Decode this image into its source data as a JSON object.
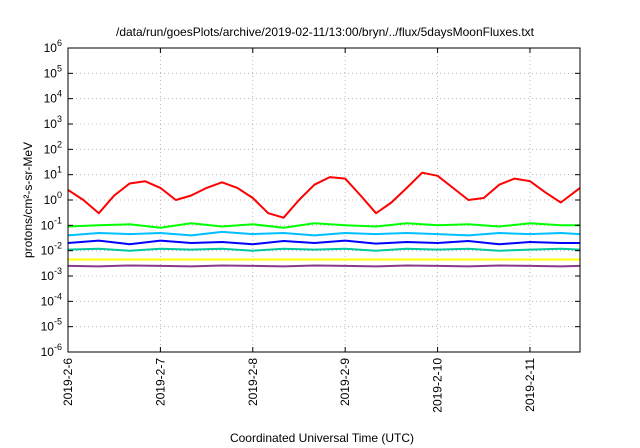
{
  "chart_data": {
    "type": "line",
    "title": "/data/run/goesPlots/archive/2019-02-11/13:00/bryn/../flux/5daysMoonFluxes.txt",
    "xlabel": "Coordinated Universal Time (UTC)",
    "ylabel": "protons/cm²-s-sr-MeV",
    "y_scale": "log",
    "ylim": [
      1e-06,
      1000000.0
    ],
    "xlim": [
      "2019-02-06T00:00",
      "2019-02-11T13:00"
    ],
    "grid": true,
    "legend": "none",
    "y_ticks": [
      {
        "value": 1e-06,
        "base": "10",
        "exp": "-6"
      },
      {
        "value": 1e-05,
        "base": "10",
        "exp": "-5"
      },
      {
        "value": 0.0001,
        "base": "10",
        "exp": "-4"
      },
      {
        "value": 0.001,
        "base": "10",
        "exp": "-3"
      },
      {
        "value": 0.01,
        "base": "10",
        "exp": "-2"
      },
      {
        "value": 0.1,
        "base": "10",
        "exp": "-1"
      },
      {
        "value": 1,
        "base": "10",
        "exp": "0"
      },
      {
        "value": 10.0,
        "base": "10",
        "exp": "1"
      },
      {
        "value": 100.0,
        "base": "10",
        "exp": "2"
      },
      {
        "value": 1000.0,
        "base": "10",
        "exp": "3"
      },
      {
        "value": 10000.0,
        "base": "10",
        "exp": "4"
      },
      {
        "value": 100000.0,
        "base": "10",
        "exp": "5"
      },
      {
        "value": 1000000.0,
        "base": "10",
        "exp": "6"
      }
    ],
    "x_ticks": [
      {
        "date": "2019-02-06T00:00",
        "label": "2019-2-6"
      },
      {
        "date": "2019-02-07T00:00",
        "label": "2019-2-7"
      },
      {
        "date": "2019-02-08T00:00",
        "label": "2019-2-8"
      },
      {
        "date": "2019-02-09T00:00",
        "label": "2019-2-9"
      },
      {
        "date": "2019-02-10T00:00",
        "label": "2019-2-10"
      },
      {
        "date": "2019-02-11T00:00",
        "label": "2019-2-11"
      }
    ],
    "series": [
      {
        "color": "#ff0000",
        "x": [
          "2019-02-06T00:00",
          "2019-02-06T04:00",
          "2019-02-06T08:00",
          "2019-02-06T12:00",
          "2019-02-06T16:00",
          "2019-02-06T20:00",
          "2019-02-07T00:00",
          "2019-02-07T04:00",
          "2019-02-07T08:00",
          "2019-02-07T12:00",
          "2019-02-07T16:00",
          "2019-02-07T20:00",
          "2019-02-08T00:00",
          "2019-02-08T04:00",
          "2019-02-08T08:00",
          "2019-02-08T12:00",
          "2019-02-08T16:00",
          "2019-02-08T20:00",
          "2019-02-09T00:00",
          "2019-02-09T04:00",
          "2019-02-09T08:00",
          "2019-02-09T12:00",
          "2019-02-09T16:00",
          "2019-02-09T20:00",
          "2019-02-10T00:00",
          "2019-02-10T04:00",
          "2019-02-10T08:00",
          "2019-02-10T12:00",
          "2019-02-10T16:00",
          "2019-02-10T20:00",
          "2019-02-11T00:00",
          "2019-02-11T04:00",
          "2019-02-11T08:00",
          "2019-02-11T13:00"
        ],
        "y": [
          2.5,
          1.0,
          0.3,
          1.5,
          4.5,
          5.5,
          3.0,
          1.0,
          1.5,
          3.0,
          5.0,
          3.0,
          1.2,
          0.3,
          0.2,
          1.0,
          4.0,
          8.0,
          7.0,
          1.5,
          0.3,
          0.8,
          3.0,
          12.0,
          9.0,
          3.0,
          1.0,
          1.2,
          4.0,
          7.0,
          5.5,
          2.0,
          0.8,
          3.0
        ]
      },
      {
        "color": "#00ff00",
        "x": [
          "2019-02-06T00:00",
          "2019-02-06T08:00",
          "2019-02-06T16:00",
          "2019-02-07T00:00",
          "2019-02-07T08:00",
          "2019-02-07T16:00",
          "2019-02-08T00:00",
          "2019-02-08T08:00",
          "2019-02-08T16:00",
          "2019-02-09T00:00",
          "2019-02-09T08:00",
          "2019-02-09T16:00",
          "2019-02-10T00:00",
          "2019-02-10T08:00",
          "2019-02-10T16:00",
          "2019-02-11T00:00",
          "2019-02-11T08:00",
          "2019-02-11T13:00"
        ],
        "y": [
          0.09,
          0.1,
          0.11,
          0.08,
          0.12,
          0.09,
          0.11,
          0.08,
          0.12,
          0.1,
          0.09,
          0.12,
          0.1,
          0.11,
          0.09,
          0.12,
          0.1,
          0.1
        ]
      },
      {
        "color": "#00bfff",
        "x": [
          "2019-02-06T00:00",
          "2019-02-06T08:00",
          "2019-02-06T16:00",
          "2019-02-07T00:00",
          "2019-02-07T08:00",
          "2019-02-07T16:00",
          "2019-02-08T00:00",
          "2019-02-08T08:00",
          "2019-02-08T16:00",
          "2019-02-09T00:00",
          "2019-02-09T08:00",
          "2019-02-09T16:00",
          "2019-02-10T00:00",
          "2019-02-10T08:00",
          "2019-02-10T16:00",
          "2019-02-11T00:00",
          "2019-02-11T08:00",
          "2019-02-11T13:00"
        ],
        "y": [
          0.04,
          0.05,
          0.045,
          0.05,
          0.04,
          0.055,
          0.045,
          0.05,
          0.04,
          0.05,
          0.045,
          0.05,
          0.045,
          0.04,
          0.05,
          0.045,
          0.05,
          0.045
        ]
      },
      {
        "color": "#0000ff",
        "x": [
          "2019-02-06T00:00",
          "2019-02-06T08:00",
          "2019-02-06T16:00",
          "2019-02-07T00:00",
          "2019-02-07T08:00",
          "2019-02-07T16:00",
          "2019-02-08T00:00",
          "2019-02-08T08:00",
          "2019-02-08T16:00",
          "2019-02-09T00:00",
          "2019-02-09T08:00",
          "2019-02-09T16:00",
          "2019-02-10T00:00",
          "2019-02-10T08:00",
          "2019-02-10T16:00",
          "2019-02-11T00:00",
          "2019-02-11T08:00",
          "2019-02-11T13:00"
        ],
        "y": [
          0.02,
          0.025,
          0.018,
          0.025,
          0.02,
          0.022,
          0.018,
          0.024,
          0.02,
          0.025,
          0.019,
          0.022,
          0.02,
          0.024,
          0.018,
          0.022,
          0.02,
          0.02
        ]
      },
      {
        "color": "#00c8a0",
        "x": [
          "2019-02-06T00:00",
          "2019-02-06T08:00",
          "2019-02-06T16:00",
          "2019-02-07T00:00",
          "2019-02-07T08:00",
          "2019-02-07T16:00",
          "2019-02-08T00:00",
          "2019-02-08T08:00",
          "2019-02-08T16:00",
          "2019-02-09T00:00",
          "2019-02-09T08:00",
          "2019-02-09T16:00",
          "2019-02-10T00:00",
          "2019-02-10T08:00",
          "2019-02-10T16:00",
          "2019-02-11T00:00",
          "2019-02-11T08:00",
          "2019-02-11T13:00"
        ],
        "y": [
          0.011,
          0.012,
          0.01,
          0.012,
          0.011,
          0.012,
          0.01,
          0.012,
          0.011,
          0.012,
          0.01,
          0.012,
          0.011,
          0.012,
          0.01,
          0.011,
          0.012,
          0.011
        ]
      },
      {
        "color": "#ffff00",
        "x": [
          "2019-02-06T00:00",
          "2019-02-07T00:00",
          "2019-02-08T00:00",
          "2019-02-09T00:00",
          "2019-02-10T00:00",
          "2019-02-11T00:00",
          "2019-02-11T13:00"
        ],
        "y": [
          0.0045,
          0.0045,
          0.0045,
          0.0045,
          0.0045,
          0.0045,
          0.0045
        ]
      },
      {
        "color": "#8b3a8b",
        "x": [
          "2019-02-06T00:00",
          "2019-02-06T08:00",
          "2019-02-06T16:00",
          "2019-02-07T00:00",
          "2019-02-07T08:00",
          "2019-02-07T16:00",
          "2019-02-08T00:00",
          "2019-02-08T08:00",
          "2019-02-08T16:00",
          "2019-02-09T00:00",
          "2019-02-09T08:00",
          "2019-02-09T16:00",
          "2019-02-10T00:00",
          "2019-02-10T08:00",
          "2019-02-10T16:00",
          "2019-02-11T00:00",
          "2019-02-11T08:00",
          "2019-02-11T13:00"
        ],
        "y": [
          0.0025,
          0.0024,
          0.0026,
          0.0025,
          0.0024,
          0.0026,
          0.0025,
          0.0024,
          0.0026,
          0.0025,
          0.0024,
          0.0026,
          0.0025,
          0.0024,
          0.0026,
          0.0025,
          0.0024,
          0.0025
        ]
      }
    ]
  }
}
